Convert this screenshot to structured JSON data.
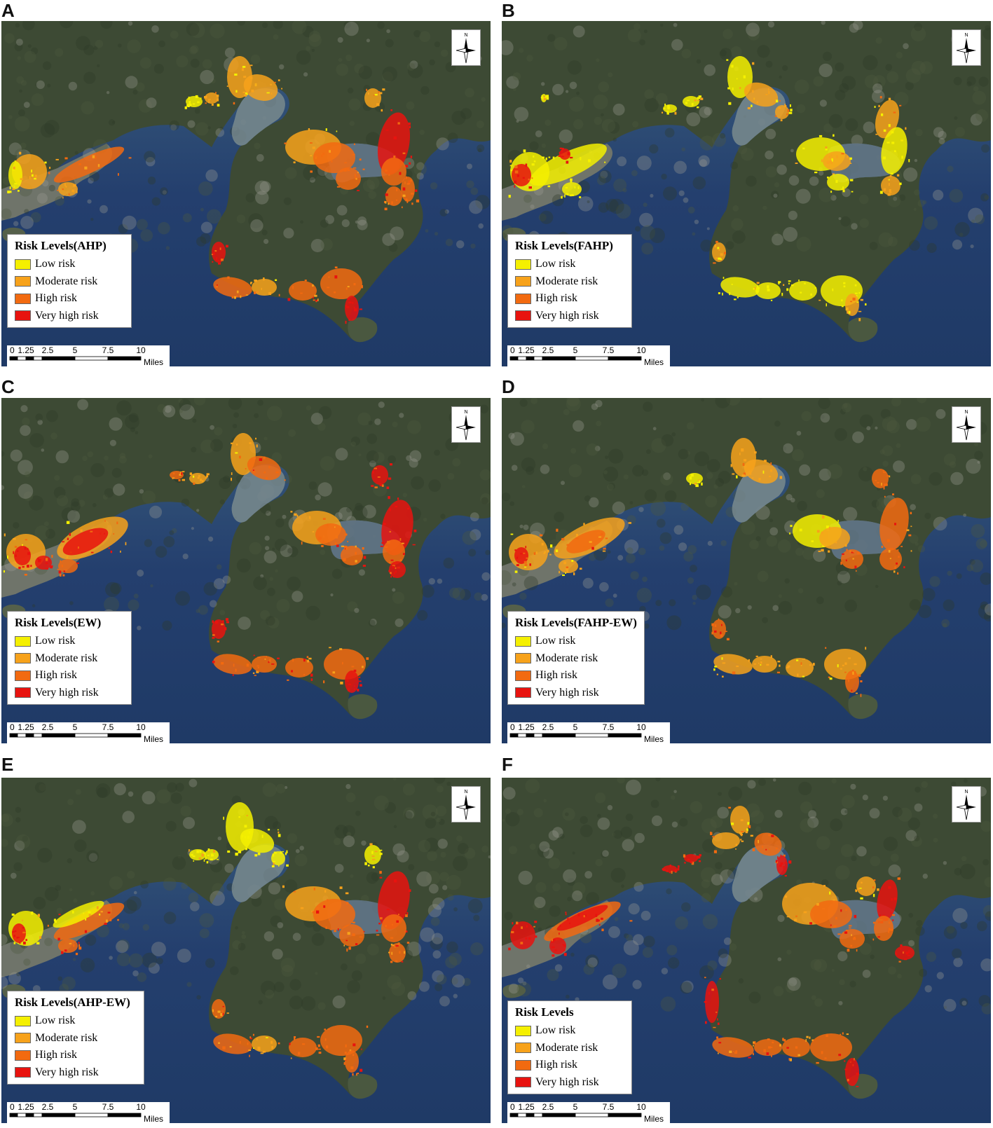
{
  "panels": [
    {
      "letter": "A",
      "legend_title": "Risk Levels(AHP)",
      "scheme": "ahp"
    },
    {
      "letter": "B",
      "legend_title": "Risk Levels(FAHP)",
      "scheme": "fahp"
    },
    {
      "letter": "C",
      "legend_title": "Risk Levels(EW)",
      "scheme": "ew"
    },
    {
      "letter": "D",
      "legend_title": "Risk Levels(FAHP-EW)",
      "scheme": "fahpew"
    },
    {
      "letter": "E",
      "legend_title": "Risk Levels(AHP-EW)",
      "scheme": "ahpew"
    },
    {
      "letter": "F",
      "legend_title": "Risk Levels",
      "scheme": "final"
    }
  ],
  "legend_items": [
    {
      "label": "Low risk",
      "color": "#f5f000"
    },
    {
      "label": "Moderate risk",
      "color": "#f7a21b"
    },
    {
      "label": "High risk",
      "color": "#f26a10"
    },
    {
      "label": "Very high risk",
      "color": "#e8130f"
    }
  ],
  "scalebar": {
    "ticks": [
      "0",
      "1.25",
      "2.5",
      "5",
      "7.5",
      "10"
    ],
    "unit": "Miles"
  },
  "north_arrow": {
    "label": "N",
    "icon": "north-arrow-icon"
  },
  "colors": {
    "sea": "#2b4a78",
    "land": "#3d4a34",
    "urban": "#8a8f86"
  }
}
